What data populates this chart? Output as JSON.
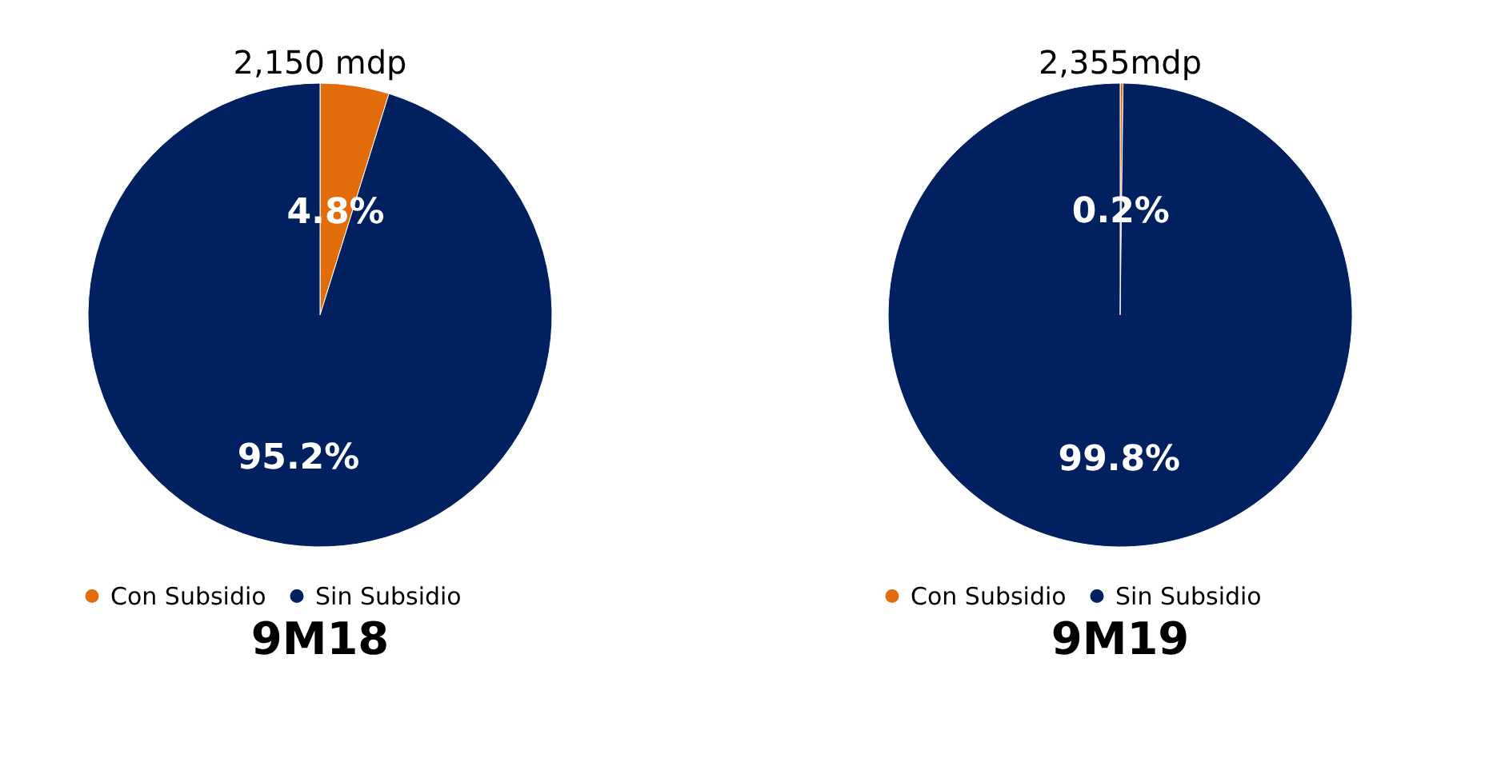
{
  "chart_data": [
    {
      "type": "pie",
      "title": "9M18",
      "annotations": [
        "2,150 mdp"
      ],
      "categories": [
        "Con Subsidio",
        "Sin Subsidio"
      ],
      "values": [
        4.8,
        95.2
      ],
      "value_labels": [
        "4.8%",
        "95.2%"
      ],
      "colors": [
        "#e36c0a",
        "#002060"
      ],
      "legend": "bottom"
    },
    {
      "type": "pie",
      "title": "9M19",
      "annotations": [
        "2,355mdp"
      ],
      "categories": [
        "Con Subsidio",
        "Sin Subsidio"
      ],
      "values": [
        0.2,
        99.8
      ],
      "value_labels": [
        "0.2%",
        "99.8%"
      ],
      "colors": [
        "#e36c0a",
        "#002060"
      ],
      "legend": "bottom"
    }
  ]
}
